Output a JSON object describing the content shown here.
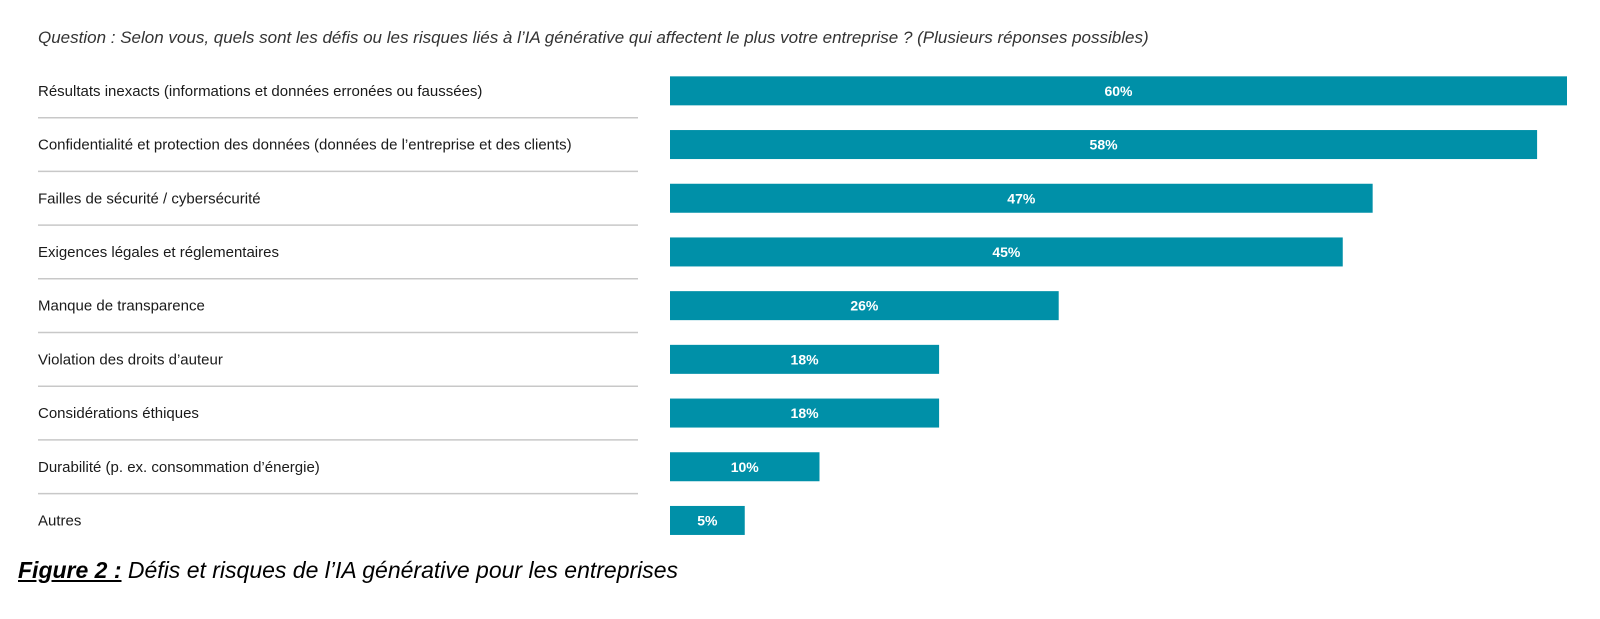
{
  "question": "Question : Selon vous, quels sont les défis ou les risques liés à l’IA générative qui affectent le plus votre entreprise ? (Plusieurs réponses possibles)",
  "caption": {
    "figure_label": "Figure 2 :",
    "text": " Défis et risques de l’IA générative pour les entreprises"
  },
  "colors": {
    "bar": "#0090a8",
    "separator": "#c8c8c8"
  },
  "chart_data": {
    "type": "bar",
    "orientation": "horizontal",
    "categories": [
      "Résultats inexacts (informations et données erronées ou faussées)",
      "Confidentialité et protection des données (données de l’entreprise et des clients)",
      "Failles de sécurité / cybersécurité",
      "Exigences légales et réglementaires",
      "Manque de transparence",
      "Violation des droits d’auteur",
      "Considérations éthiques",
      "Durabilité (p. ex. consommation d’énergie)",
      "Autres"
    ],
    "values": [
      60,
      58,
      47,
      45,
      26,
      18,
      18,
      10,
      5
    ],
    "value_labels": [
      "60%",
      "58%",
      "47%",
      "45%",
      "26%",
      "18%",
      "18%",
      "10%",
      "5%"
    ],
    "xlim": [
      0,
      60
    ],
    "unit": "%",
    "grid": false,
    "legend": "none"
  }
}
